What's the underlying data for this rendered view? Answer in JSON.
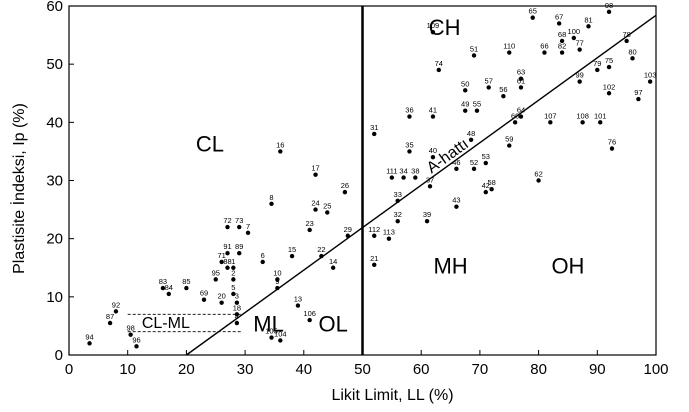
{
  "chart_data": {
    "type": "scatter",
    "title": "",
    "xlabel": "Likit Limit, LL (%)",
    "ylabel": "Plastisite İndeksi, Ip (%)",
    "xlim": [
      0,
      100
    ],
    "ylim": [
      0,
      60
    ],
    "xticks": [
      0,
      10,
      20,
      30,
      40,
      50,
      60,
      70,
      80,
      90,
      100
    ],
    "yticks": [
      0,
      10,
      20,
      30,
      40,
      50,
      60
    ],
    "grid": false,
    "legend": "none",
    "colors": {
      "axis": "#000000",
      "points": "#000000",
      "background": "#ffffff"
    },
    "zone_labels": [
      {
        "text": "CH",
        "x": 64,
        "y": 55
      },
      {
        "text": "CL",
        "x": 24,
        "y": 35
      },
      {
        "text": "MH",
        "x": 65,
        "y": 14
      },
      {
        "text": "OH",
        "x": 85,
        "y": 14
      },
      {
        "text": "ML",
        "x": 34,
        "y": 4
      },
      {
        "text": "OL",
        "x": 45,
        "y": 4
      }
    ],
    "cl_ml_label": "CL-ML",
    "a_line_label": "A-hattı",
    "a_line": {
      "slope": 0.73,
      "intercept_ll": 20,
      "from": [
        20,
        0
      ],
      "to": [
        100,
        58.4
      ]
    },
    "ll50_line": {
      "x": 50,
      "y_from": 0,
      "y_to": 60
    },
    "cl_ml_band": {
      "x_from": 10,
      "x_to": 29.6,
      "y_lower": 4,
      "y_upper": 7
    },
    "points": [
      {
        "id": "1",
        "x": 28,
        "y": 15
      },
      {
        "id": "2",
        "x": 28,
        "y": 13
      },
      {
        "id": "3",
        "x": 28.6,
        "y": 9
      },
      {
        "id": "4",
        "x": 28.6,
        "y": 5.5
      },
      {
        "id": "5",
        "x": 28,
        "y": 10.5
      },
      {
        "id": "6",
        "x": 33,
        "y": 16
      },
      {
        "id": "7",
        "x": 30.5,
        "y": 21
      },
      {
        "id": "8",
        "x": 34.5,
        "y": 26
      },
      {
        "id": "9",
        "x": 35.5,
        "y": 11.5
      },
      {
        "id": "10",
        "x": 35.5,
        "y": 13
      },
      {
        "id": "13",
        "x": 39,
        "y": 8.5
      },
      {
        "id": "14",
        "x": 45,
        "y": 15
      },
      {
        "id": "15",
        "x": 38,
        "y": 17
      },
      {
        "id": "16",
        "x": 36,
        "y": 35
      },
      {
        "id": "17",
        "x": 42,
        "y": 31
      },
      {
        "id": "18",
        "x": 28.6,
        "y": 7
      },
      {
        "id": "20",
        "x": 26,
        "y": 9
      },
      {
        "id": "21",
        "x": 52,
        "y": 15.5
      },
      {
        "id": "22",
        "x": 43,
        "y": 17
      },
      {
        "id": "23",
        "x": 41,
        "y": 21.5
      },
      {
        "id": "24",
        "x": 42,
        "y": 25
      },
      {
        "id": "25",
        "x": 44,
        "y": 24.5
      },
      {
        "id": "26",
        "x": 47,
        "y": 28
      },
      {
        "id": "29",
        "x": 47.5,
        "y": 20.5
      },
      {
        "id": "31",
        "x": 52,
        "y": 38
      },
      {
        "id": "32",
        "x": 56,
        "y": 23
      },
      {
        "id": "33",
        "x": 56,
        "y": 26.5
      },
      {
        "id": "34",
        "x": 57,
        "y": 30.5
      },
      {
        "id": "35",
        "x": 58,
        "y": 35
      },
      {
        "id": "36",
        "x": 58,
        "y": 41
      },
      {
        "id": "37",
        "x": 61.5,
        "y": 29
      },
      {
        "id": "38",
        "x": 59,
        "y": 30.5
      },
      {
        "id": "39",
        "x": 61,
        "y": 23
      },
      {
        "id": "40",
        "x": 62,
        "y": 34
      },
      {
        "id": "41",
        "x": 62,
        "y": 41
      },
      {
        "id": "42",
        "x": 71,
        "y": 28
      },
      {
        "id": "43",
        "x": 66,
        "y": 25.5
      },
      {
        "id": "46",
        "x": 66,
        "y": 32
      },
      {
        "id": "48",
        "x": 68.5,
        "y": 37
      },
      {
        "id": "49",
        "x": 67.5,
        "y": 42
      },
      {
        "id": "50",
        "x": 67.5,
        "y": 45.5
      },
      {
        "id": "51",
        "x": 69,
        "y": 51.5
      },
      {
        "id": "52",
        "x": 69,
        "y": 32
      },
      {
        "id": "53",
        "x": 71,
        "y": 33
      },
      {
        "id": "55",
        "x": 69.5,
        "y": 42
      },
      {
        "id": "56",
        "x": 74,
        "y": 44.5
      },
      {
        "id": "57",
        "x": 71.5,
        "y": 46
      },
      {
        "id": "58",
        "x": 72,
        "y": 28.5
      },
      {
        "id": "59",
        "x": 75,
        "y": 36
      },
      {
        "id": "60",
        "x": 76,
        "y": 40
      },
      {
        "id": "61",
        "x": 77,
        "y": 46
      },
      {
        "id": "62",
        "x": 80,
        "y": 30
      },
      {
        "id": "63",
        "x": 77,
        "y": 47.5
      },
      {
        "id": "64",
        "x": 77,
        "y": 41
      },
      {
        "id": "65",
        "x": 79,
        "y": 58
      },
      {
        "id": "66",
        "x": 81,
        "y": 52
      },
      {
        "id": "67",
        "x": 83.5,
        "y": 57
      },
      {
        "id": "68",
        "x": 84,
        "y": 54
      },
      {
        "id": "74",
        "x": 63,
        "y": 49
      },
      {
        "id": "75",
        "x": 92,
        "y": 49.5
      },
      {
        "id": "76",
        "x": 92.5,
        "y": 35.5
      },
      {
        "id": "77",
        "x": 87,
        "y": 52.5
      },
      {
        "id": "78",
        "x": 95,
        "y": 54
      },
      {
        "id": "79",
        "x": 90,
        "y": 49
      },
      {
        "id": "80",
        "x": 96,
        "y": 51
      },
      {
        "id": "81",
        "x": 88.5,
        "y": 56.5
      },
      {
        "id": "82",
        "x": 84,
        "y": 52
      },
      {
        "id": "98",
        "x": 92,
        "y": 59
      },
      {
        "id": "99",
        "x": 87,
        "y": 47
      },
      {
        "id": "100",
        "x": 86,
        "y": 54.5
      },
      {
        "id": "101",
        "x": 90.5,
        "y": 40
      },
      {
        "id": "102",
        "x": 92,
        "y": 45
      },
      {
        "id": "103",
        "x": 99,
        "y": 47
      },
      {
        "id": "107",
        "x": 82,
        "y": 40
      },
      {
        "id": "108",
        "x": 87.5,
        "y": 40
      },
      {
        "id": "109",
        "x": 62,
        "y": 55.5
      },
      {
        "id": "110",
        "x": 75,
        "y": 52
      },
      {
        "id": "111",
        "x": 55,
        "y": 30.5
      },
      {
        "id": "112",
        "x": 52,
        "y": 20.5
      },
      {
        "id": "113",
        "x": 54.5,
        "y": 20
      },
      {
        "id": "71",
        "x": 26,
        "y": 16
      },
      {
        "id": "72",
        "x": 27,
        "y": 22
      },
      {
        "id": "73",
        "x": 29,
        "y": 22
      },
      {
        "id": "83",
        "x": 16,
        "y": 11.5
      },
      {
        "id": "84",
        "x": 17,
        "y": 10.5
      },
      {
        "id": "85",
        "x": 20,
        "y": 11.5
      },
      {
        "id": "87",
        "x": 7,
        "y": 5.5
      },
      {
        "id": "88",
        "x": 27,
        "y": 15
      },
      {
        "id": "89",
        "x": 29,
        "y": 17.5
      },
      {
        "id": "91",
        "x": 27,
        "y": 17.5
      },
      {
        "id": "92",
        "x": 8,
        "y": 7.5
      },
      {
        "id": "94",
        "x": 3.5,
        "y": 2
      },
      {
        "id": "95",
        "x": 25,
        "y": 13
      },
      {
        "id": "96",
        "x": 11.5,
        "y": 1.5
      },
      {
        "id": "97",
        "x": 97,
        "y": 44
      },
      {
        "id": "98b",
        "x": 10.5,
        "y": 3.5
      },
      {
        "id": "69",
        "x": 23,
        "y": 9.5
      },
      {
        "id": "104",
        "x": 36,
        "y": 2.5
      },
      {
        "id": "105",
        "x": 34.5,
        "y": 3
      },
      {
        "id": "106",
        "x": 41,
        "y": 6
      }
    ]
  }
}
